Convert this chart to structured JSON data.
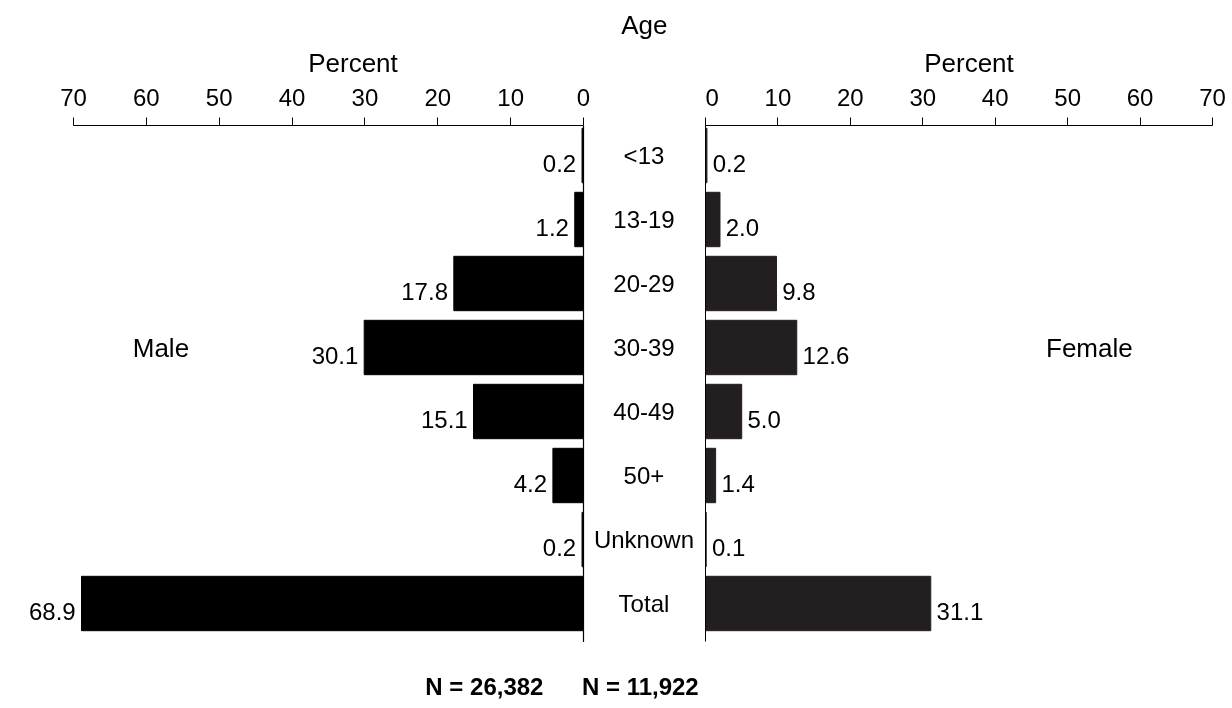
{
  "chart_data": [
    {
      "type": "bar",
      "orientation": "horizontal",
      "categories": [
        "<13",
        "13-19",
        "20-29",
        "30-39",
        "40-49",
        "50+",
        "Unknown",
        "Total"
      ],
      "xlabel": "Percent",
      "ylabel": "Age",
      "xlim": [
        70,
        0
      ],
      "xticks": [
        70,
        60,
        50,
        40,
        30,
        20,
        10,
        0
      ],
      "series": [
        {
          "name": "Male",
          "color": "#000000",
          "values": [
            0.2,
            1.2,
            17.8,
            30.1,
            15.1,
            4.2,
            0.2,
            68.9
          ],
          "value_labels": [
            "0.2",
            "1.2",
            "17.8",
            "30.1",
            "15.1",
            "4.2",
            "0.2",
            "68.9"
          ]
        }
      ],
      "annotations": [
        "N = 26,382",
        "N = 11,922"
      ]
    },
    {
      "type": "bar",
      "orientation": "horizontal",
      "categories": [
        null,
        null,
        null,
        null,
        null,
        null,
        null,
        null
      ],
      "xlabel": "Percent",
      "xlim": [
        0,
        70
      ],
      "xticks": [
        0,
        10,
        20,
        30,
        40,
        50,
        60,
        70
      ],
      "tick_labels": "x",
      "series": [
        {
          "name": "Female",
          "color": "#231f20",
          "values": [
            0.2,
            2.0,
            9.8,
            12.6,
            5.0,
            1.4,
            0.1,
            31.1
          ],
          "value_labels": [
            "0.2",
            "2.0",
            "9.8",
            "12.6",
            "5.0",
            "1.4",
            "0.1",
            "31.1"
          ]
        }
      ]
    }
  ]
}
